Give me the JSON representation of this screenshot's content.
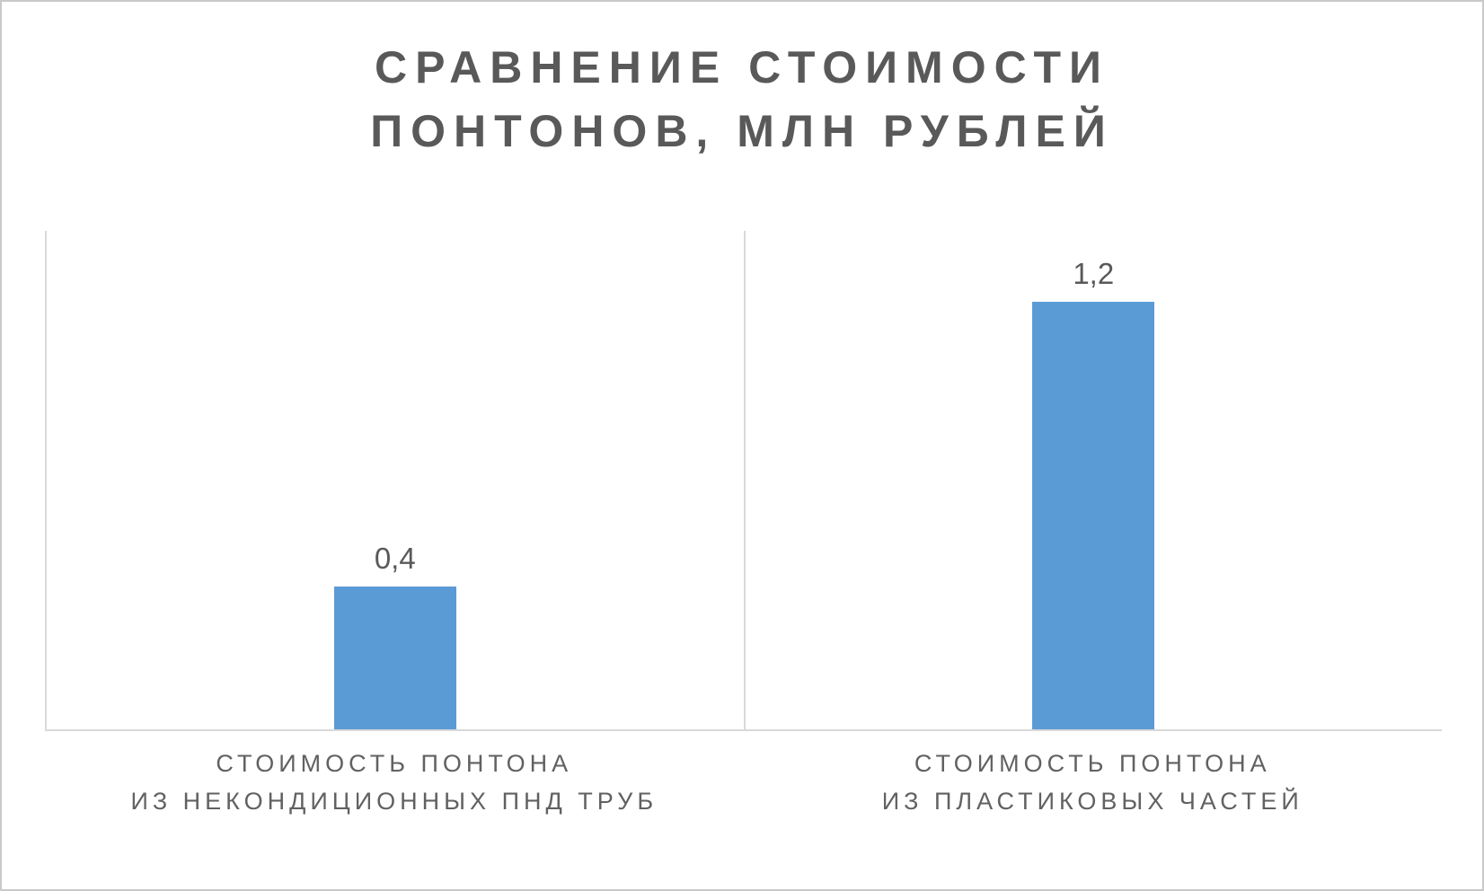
{
  "chart_data": {
    "type": "bar",
    "title": "СРАВНЕНИЕ СТОИМОСТИ ПОНТОНОВ, МЛН РУБЛЕЙ",
    "title_lines": [
      "СРАВНЕНИЕ СТОИМОСТИ",
      "ПОНТОНОВ, МЛН РУБЛЕЙ"
    ],
    "categories": [
      "СТОИМОСТЬ ПОНТОНА ИЗ НЕКОНДИЦИОННЫХ ПНД ТРУБ",
      "СТОИМОСТЬ ПОНТОНА ИЗ ПЛАСТИКОВЫХ ЧАСТЕЙ"
    ],
    "category_lines": [
      [
        "СТОИМОСТЬ ПОНТОНА",
        "ИЗ НЕКОНДИЦИОННЫХ ПНД ТРУБ"
      ],
      [
        "СТОИМОСТЬ ПОНТОНА",
        "ИЗ ПЛАСТИКОВЫХ ЧАСТЕЙ"
      ]
    ],
    "values": [
      0.4,
      1.2
    ],
    "value_labels": [
      "0,4",
      "1,2"
    ],
    "xlabel": "",
    "ylabel": "",
    "ylim": [
      0,
      1.4
    ],
    "grid": "vertical category separators only, no horizontal gridlines",
    "legend": "none",
    "colors": {
      "bar": "#5b9bd5",
      "title": "#595959",
      "data_label": "#595959",
      "category_label": "#616161",
      "axis_line": "#d9d9d9"
    }
  }
}
